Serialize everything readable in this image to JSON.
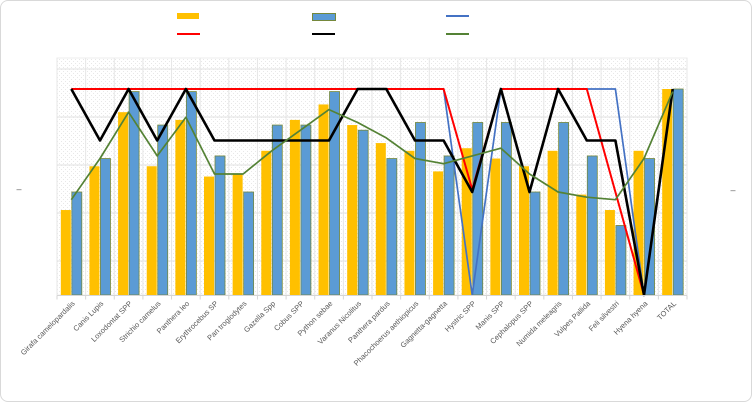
{
  "chart": {
    "axis_left_label": "–",
    "axis_right_label": "–",
    "colors": {
      "background": "#FFFFFF",
      "frame_border": "#D9D9D9",
      "gridline": "#E3E3E3",
      "axis_line": "#D6D6D6",
      "tick_text": "#595959"
    },
    "legend": [
      {
        "name": "bars-yellow",
        "kind": "bar",
        "color": "#FFC000",
        "border": "",
        "label": ""
      },
      {
        "name": "bars-blue",
        "kind": "bar",
        "color": "#5B9BD5",
        "border": "#75883B",
        "label": ""
      },
      {
        "name": "line-blue",
        "kind": "line",
        "color": "#4472C4",
        "border": "",
        "label": ""
      },
      {
        "name": "line-red",
        "kind": "line",
        "color": "#FF0000",
        "border": "",
        "label": ""
      },
      {
        "name": "line-black",
        "kind": "line",
        "color": "#000000",
        "border": "",
        "label": ""
      },
      {
        "name": "line-green",
        "kind": "line",
        "color": "#548235",
        "border": "",
        "label": ""
      }
    ]
  },
  "chart_data": {
    "type": "combo-bar-line",
    "title": "",
    "xlabel": "",
    "ylabel": "",
    "ylim": [
      0,
      4.6
    ],
    "grid": true,
    "legend_position": "top",
    "y_axis_tick_labels": "dash-only",
    "categories": [
      "Girafa camelopardalis",
      "Canis Lupis",
      "Loxodontat SPP",
      "Strichio camelus",
      "Panthera leo",
      "Erythrocebus SP",
      "Pan troglodytes",
      "Gazella Spp",
      "Cobus SPP",
      "Python sebae",
      "Varanus Nicolitus",
      "Panthera pardus",
      "Phacochoerus aethiopicus",
      "Gagnetta-gagnetta",
      "Hystric SPP",
      "Manis SPP",
      "Cephalopus SPP",
      "Numida meleagris",
      "Vulpes Pallida",
      "Feli silvestri",
      "Hyena hyena",
      "TOTAL"
    ],
    "series": [
      {
        "name": "yellow-bars",
        "type": "bar",
        "color": "#FFC000",
        "values": [
          1.65,
          2.5,
          3.55,
          2.5,
          3.4,
          2.3,
          2.35,
          2.8,
          3.4,
          3.7,
          3.3,
          2.95,
          2.8,
          2.4,
          2.85,
          2.65,
          2.5,
          2.8,
          1.95,
          1.65,
          2.8,
          4.0
        ]
      },
      {
        "name": "blue-bars",
        "type": "bar",
        "color": "#5B9BD5",
        "border_color": "#75883B",
        "values": [
          2.0,
          2.65,
          3.95,
          3.3,
          3.95,
          2.7,
          2.0,
          3.3,
          3.3,
          3.95,
          3.2,
          2.65,
          3.35,
          2.7,
          3.35,
          3.35,
          2.0,
          3.35,
          2.7,
          1.35,
          2.65,
          4.0
        ]
      },
      {
        "name": "blue-line",
        "type": "line",
        "color": "#4472C4",
        "width": 1.7,
        "values": [
          4,
          4,
          4,
          4,
          4,
          4,
          4,
          4,
          4,
          4,
          4,
          4,
          4,
          4,
          0,
          4,
          4,
          4,
          4,
          4,
          0,
          4
        ]
      },
      {
        "name": "red-line",
        "type": "line",
        "color": "#FF0000",
        "width": 2,
        "values": [
          4,
          4,
          4,
          4,
          4,
          4,
          4,
          4,
          4,
          4,
          4,
          4,
          4,
          4,
          2.05,
          4,
          4,
          4,
          4,
          2,
          0,
          null
        ]
      },
      {
        "name": "black-line",
        "type": "line",
        "color": "#000000",
        "width": 2.6,
        "values": [
          4,
          3,
          4,
          3,
          4,
          3,
          3,
          3,
          3,
          3,
          4,
          4,
          3,
          3,
          2,
          4,
          2,
          4,
          3,
          3,
          0,
          4
        ]
      },
      {
        "name": "green-line",
        "type": "line",
        "color": "#548235",
        "width": 1.7,
        "values": [
          1.85,
          2.65,
          3.55,
          2.7,
          3.45,
          2.35,
          2.35,
          2.8,
          3.2,
          3.6,
          3.35,
          3.05,
          2.65,
          2.55,
          2.7,
          2.85,
          2.35,
          2.0,
          1.9,
          1.85,
          2.65,
          3.95
        ]
      }
    ]
  }
}
